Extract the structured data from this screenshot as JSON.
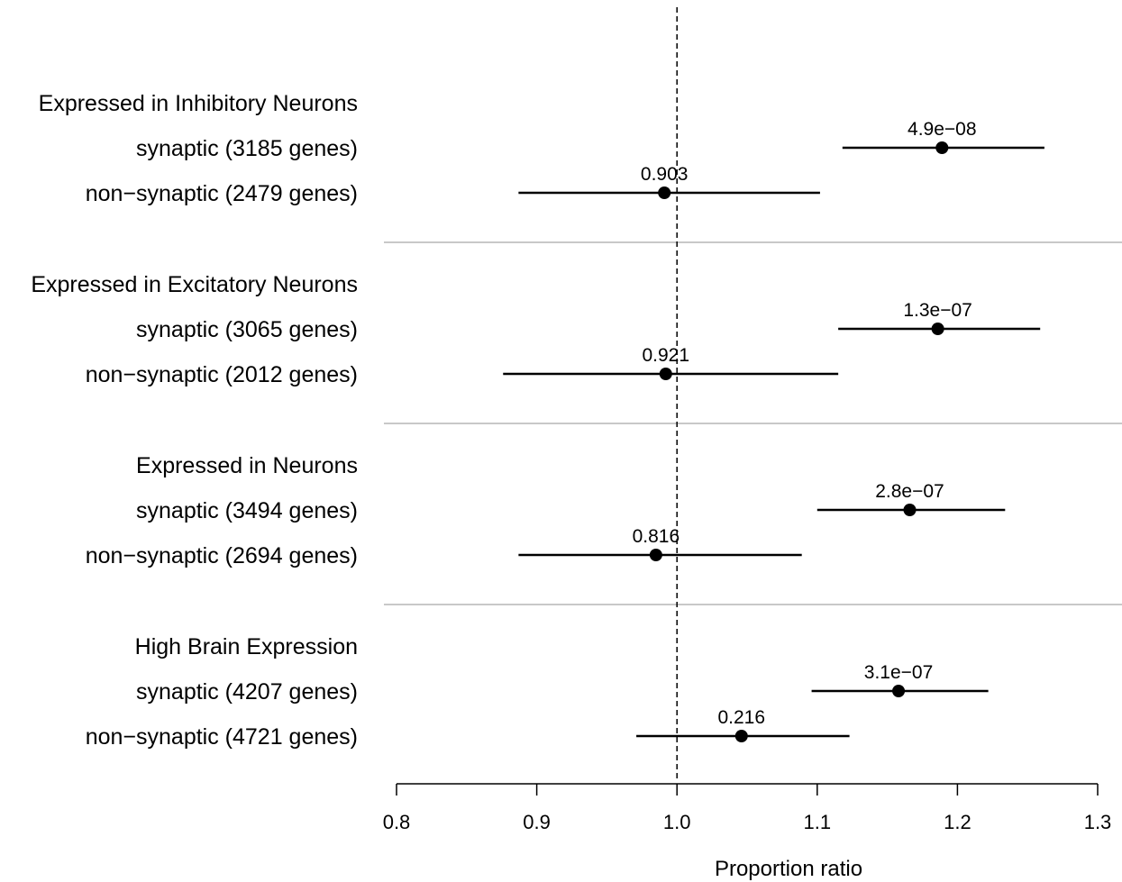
{
  "chart_data": {
    "type": "forest",
    "xlabel": "Proportion ratio",
    "xlim": [
      0.8,
      1.3
    ],
    "xticks": [
      0.8,
      0.9,
      1.0,
      1.1,
      1.2,
      1.3
    ],
    "xtick_labels": [
      "0.8",
      "0.9",
      "1.0",
      "1.1",
      "1.2",
      "1.3"
    ],
    "reference_line": 1.0,
    "groups": [
      {
        "title": "Expressed in Inhibitory Neurons",
        "rows": [
          {
            "label": "synaptic (3185 genes)",
            "estimate": 1.189,
            "lower": 1.118,
            "upper": 1.262,
            "pvalue": "4.9e−08"
          },
          {
            "label": "non−synaptic (2479 genes)",
            "estimate": 0.991,
            "lower": 0.887,
            "upper": 1.102,
            "pvalue": "0.903"
          }
        ]
      },
      {
        "title": "Expressed in Excitatory Neurons",
        "rows": [
          {
            "label": "synaptic (3065 genes)",
            "estimate": 1.186,
            "lower": 1.115,
            "upper": 1.259,
            "pvalue": "1.3e−07"
          },
          {
            "label": "non−synaptic (2012 genes)",
            "estimate": 0.992,
            "lower": 0.876,
            "upper": 1.115,
            "pvalue": "0.921"
          }
        ]
      },
      {
        "title": "Expressed in Neurons",
        "rows": [
          {
            "label": "synaptic (3494 genes)",
            "estimate": 1.166,
            "lower": 1.1,
            "upper": 1.234,
            "pvalue": "2.8e−07"
          },
          {
            "label": "non−synaptic (2694 genes)",
            "estimate": 0.985,
            "lower": 0.887,
            "upper": 1.089,
            "pvalue": "0.816"
          }
        ]
      },
      {
        "title": "High Brain Expression",
        "rows": [
          {
            "label": "synaptic (4207 genes)",
            "estimate": 1.158,
            "lower": 1.096,
            "upper": 1.222,
            "pvalue": "3.1e−07"
          },
          {
            "label": "non−synaptic (4721 genes)",
            "estimate": 1.046,
            "lower": 0.971,
            "upper": 1.123,
            "pvalue": "0.216"
          }
        ]
      }
    ]
  }
}
